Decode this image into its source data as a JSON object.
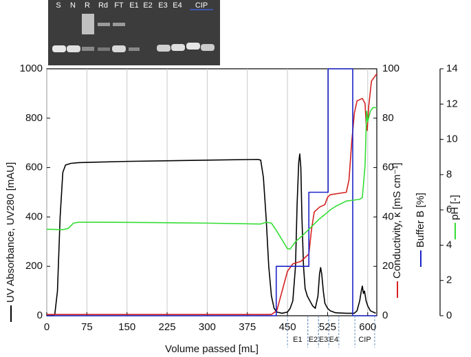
{
  "gel": {
    "lanes": [
      "S",
      "N",
      "R",
      "Rd",
      "FT",
      "E1",
      "E2",
      "E3",
      "E4",
      "CIP"
    ]
  },
  "chart_data": {
    "type": "line",
    "x_label": "Volume passed [mL]",
    "xlim": [
      0,
      617
    ],
    "xticks": [
      0,
      75,
      150,
      225,
      300,
      375,
      450,
      525,
      600
    ],
    "ylim": [
      0,
      1000
    ],
    "yticks": [
      0,
      200,
      400,
      600,
      800,
      1000
    ],
    "y2lim": [
      0,
      100
    ],
    "y2ticks": [
      0,
      20,
      40,
      60,
      80,
      100
    ],
    "y3lim": [
      0,
      14
    ],
    "y3ticks": [
      0,
      2,
      4,
      6,
      8,
      10,
      12,
      14
    ],
    "grid": "x",
    "series": [
      {
        "name": "UV Absorbance, UV280 [mAU]",
        "color": "#000000",
        "axis": "y",
        "x": [
          0,
          10,
          15,
          20,
          25,
          30,
          35,
          45,
          60,
          150,
          300,
          395,
          400,
          405,
          410,
          415,
          420,
          425,
          430,
          440,
          450,
          455,
          460,
          465,
          468,
          471,
          473,
          475,
          477,
          480,
          483,
          487,
          492,
          497,
          502,
          507,
          510,
          512,
          514,
          517,
          520,
          525,
          530,
          540,
          560,
          575,
          580,
          585,
          588,
          590,
          592,
          594,
          597,
          600,
          605,
          615
        ],
        "values": [
          0,
          0,
          5,
          100,
          400,
          580,
          610,
          617,
          620,
          625,
          630,
          633,
          630,
          560,
          400,
          200,
          80,
          30,
          15,
          10,
          15,
          30,
          60,
          200,
          450,
          620,
          655,
          600,
          400,
          200,
          110,
          80,
          60,
          40,
          30,
          80,
          170,
          195,
          170,
          100,
          50,
          30,
          20,
          12,
          10,
          10,
          20,
          60,
          100,
          120,
          90,
          100,
          60,
          40,
          20,
          10
        ]
      },
      {
        "name": "Conductivity, κ [mS cm⁻¹]",
        "color": "#d42020",
        "axis": "y2",
        "x": [
          0,
          420,
          430,
          440,
          450,
          460,
          475,
          490,
          495,
          500,
          510,
          520,
          525,
          530,
          560,
          565,
          570,
          575,
          580,
          590,
          595,
          597,
          599,
          602,
          607,
          617
        ],
        "values": [
          0.5,
          0.5,
          2,
          10,
          18,
          21,
          22,
          25,
          35,
          42,
          44,
          45,
          48,
          49,
          50,
          55,
          70,
          82,
          87,
          88,
          86,
          78,
          75,
          85,
          95,
          98
        ]
      },
      {
        "name": "Buffer B [%]",
        "color": "#1a22c8",
        "axis": "y2",
        "x": [
          0,
          429,
          429,
          490,
          490,
          526,
          526,
          572,
          572,
          617
        ],
        "values": [
          0,
          0,
          20,
          20,
          50,
          50,
          100,
          100,
          0,
          0
        ]
      },
      {
        "name": "pH [-]",
        "color": "#33dd33",
        "axis": "y3",
        "x": [
          0,
          30,
          40,
          50,
          60,
          100,
          200,
          300,
          400,
          410,
          420,
          430,
          440,
          450,
          455,
          465,
          480,
          490,
          500,
          510,
          520,
          530,
          540,
          560,
          585,
          590,
          595,
          598,
          600,
          605,
          610,
          617
        ],
        "values": [
          4.9,
          4.88,
          4.95,
          5.25,
          5.3,
          5.3,
          5.28,
          5.25,
          5.2,
          5.3,
          5.25,
          4.8,
          4.3,
          3.8,
          3.78,
          4.2,
          4.6,
          4.9,
          5.2,
          5.5,
          5.74,
          6.0,
          6.2,
          6.5,
          6.6,
          6.7,
          8.5,
          11.6,
          11.0,
          11.6,
          11.8,
          11.8
        ]
      }
    ],
    "fractions": [
      {
        "label": "E1",
        "start": 450,
        "end": 488
      },
      {
        "label": "E2",
        "start": 488,
        "end": 508
      },
      {
        "label": "E3",
        "start": 508,
        "end": 527
      },
      {
        "label": "E4",
        "start": 527,
        "end": 546
      },
      {
        "label": "CIP",
        "start": 576,
        "end": 613
      }
    ]
  }
}
